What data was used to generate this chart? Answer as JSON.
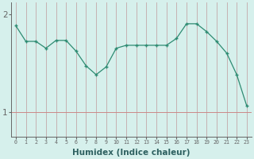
{
  "x": [
    0,
    1,
    2,
    3,
    4,
    5,
    6,
    7,
    8,
    9,
    10,
    11,
    12,
    13,
    14,
    15,
    16,
    17,
    18,
    19,
    20,
    21,
    22,
    23
  ],
  "y": [
    1.88,
    1.72,
    1.72,
    1.65,
    1.73,
    1.73,
    1.62,
    1.47,
    1.38,
    1.46,
    1.65,
    1.68,
    1.68,
    1.68,
    1.68,
    1.68,
    1.75,
    1.9,
    1.9,
    1.82,
    1.72,
    1.6,
    1.38,
    1.06
  ],
  "line_color": "#2e8b72",
  "marker": "+",
  "bg_color": "#d6f0ec",
  "vline_color": "#c4a8a8",
  "hline_color": "#cc8888",
  "axis_color": "#666666",
  "xlabel": "Humidex (Indice chaleur)",
  "xlabel_fontsize": 7.5,
  "ytick_labels": [
    "1",
    "2"
  ],
  "ytick_vals": [
    1,
    2
  ],
  "ylim": [
    0.75,
    2.12
  ],
  "xlim": [
    -0.5,
    23.5
  ],
  "xtick_labels": [
    "0",
    "1",
    "2",
    "3",
    "4",
    "5",
    "6",
    "7",
    "8",
    "9",
    "10",
    "11",
    "12",
    "13",
    "14",
    "15",
    "16",
    "17",
    "18",
    "19",
    "20",
    "21",
    "22",
    "23"
  ],
  "xtick_fontsize": 4.8,
  "ytick_fontsize": 7.5
}
